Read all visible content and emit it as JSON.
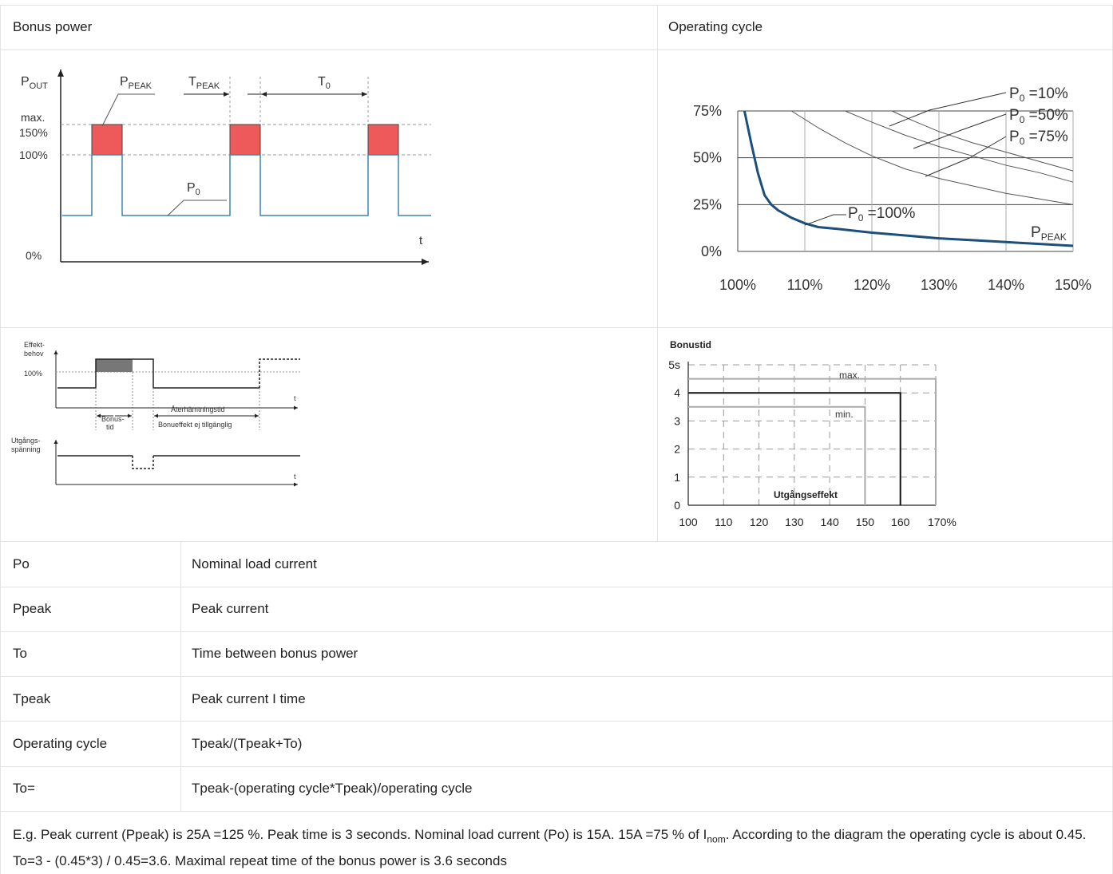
{
  "header": {
    "left": "Bonus power",
    "right": "Operating cycle"
  },
  "figure1": {
    "pout_p": "P",
    "pout_sub": "OUT",
    "ppeak_p": "P",
    "ppeak_sub": "PEAK",
    "tpeak_t": "T",
    "tpeak_sub": "PEAK",
    "t0_t": "T",
    "t0_sub": "0",
    "max": "max.",
    "y150": "150%",
    "y100": "100%",
    "y0": "0%",
    "p0_p": "P",
    "p0_sub": "0",
    "t": "t",
    "colors": {
      "peak_fill": "#ee5a5a",
      "signal": "#3f86a8",
      "axis": "#222222"
    }
  },
  "figure2": {
    "chart_data": {
      "type": "line",
      "x_ticks": [
        "100%",
        "110%",
        "120%",
        "130%",
        "140%",
        "150%"
      ],
      "y_ticks": [
        "0%",
        "25%",
        "50%",
        "75%"
      ],
      "xlim": [
        100,
        150
      ],
      "ylim": [
        0,
        75
      ],
      "series": [
        {
          "name": "P0 =100%",
          "x": [
            101,
            102,
            103,
            104,
            105,
            106,
            108,
            110,
            112,
            115,
            120,
            125,
            130,
            135,
            140,
            145,
            150
          ],
          "y": [
            75,
            58,
            42,
            30,
            25,
            22,
            18,
            15,
            13,
            12,
            10,
            8.5,
            7,
            6,
            5,
            4,
            3
          ]
        },
        {
          "name": "P0 =75%",
          "x": [
            108,
            112,
            116,
            120,
            125,
            130,
            135,
            140,
            145,
            150
          ],
          "y": [
            75,
            66,
            58,
            51,
            44,
            39,
            35,
            31,
            28,
            25
          ]
        },
        {
          "name": "P0 =50%",
          "x": [
            116,
            120,
            125,
            130,
            135,
            140,
            145,
            150
          ],
          "y": [
            75,
            69,
            62,
            56,
            51,
            46,
            42,
            37
          ]
        },
        {
          "name": "P0 =10%",
          "x": [
            123,
            126,
            130,
            135,
            140,
            145,
            150
          ],
          "y": [
            75,
            70,
            64,
            58,
            53,
            48,
            43
          ]
        }
      ],
      "labels": {
        "p10_p": "P",
        "p10_sub": "0",
        "p10_val": " =10%",
        "p50_p": "P",
        "p50_sub": "0",
        "p50_val": " =50%",
        "p75_p": "P",
        "p75_sub": "0",
        "p75_val": " =75%",
        "p100_p": "P",
        "p100_sub": "0",
        "p100_val": " =100%",
        "ppeak_p": "P",
        "ppeak_sub": "PEAK"
      }
    }
  },
  "figure3": {
    "effekt1": "Effekt-",
    "effekt2": "behov",
    "y100": "100%",
    "bonus1": "Bonus-",
    "bonus2": "tid",
    "ater": "Återhämtningstid",
    "bonuseffekt": "Bonueffekt ej tillgänglig",
    "utg1": "Utgångs-",
    "utg2": "spänning",
    "t": "t"
  },
  "figure4": {
    "chart_data": {
      "type": "line",
      "title": "Bonustid",
      "xlabel": "Utgångseffekt",
      "x_ticks": [
        "100",
        "110",
        "120",
        "130",
        "140",
        "150",
        "160",
        "170%"
      ],
      "y_ticks": [
        "0",
        "1",
        "2",
        "3",
        "4",
        "5s"
      ],
      "xlim": [
        100,
        170
      ],
      "ylim": [
        0,
        5
      ],
      "series": [
        {
          "name": "max.",
          "x": [
            100,
            170,
            170
          ],
          "y": [
            4.5,
            4.5,
            0
          ]
        },
        {
          "name": "",
          "x": [
            100,
            160,
            160
          ],
          "y": [
            4,
            4,
            0
          ]
        },
        {
          "name": "min.",
          "x": [
            100,
            150,
            150
          ],
          "y": [
            3.5,
            3.5,
            0
          ]
        }
      ]
    }
  },
  "table": {
    "rows": [
      {
        "key": "Po",
        "value": "Nominal load current"
      },
      {
        "key": "Ppeak",
        "value": "Peak current"
      },
      {
        "key": "To",
        "value": "Time between bonus power"
      },
      {
        "key": "Tpeak",
        "value": "Peak current I time"
      },
      {
        "key": "Operating cycle",
        "value": "Tpeak/(Tpeak+To)"
      },
      {
        "key": "To=",
        "value": "Tpeak-(operating cycle*Tpeak)/operating cycle"
      }
    ]
  },
  "note": {
    "part1": "E.g. Peak current (Ppeak) is 25A =125 %. Peak time is 3 seconds. Nominal load current (Po) is 15A. 15A =75 % of I",
    "sub": "nom",
    "part2": ". According to the diagram the operating cycle is about 0.45. To=3 - (0.45*3) / 0.45=3.6. Maximal repeat time of the bonus power is 3.6 seconds"
  }
}
